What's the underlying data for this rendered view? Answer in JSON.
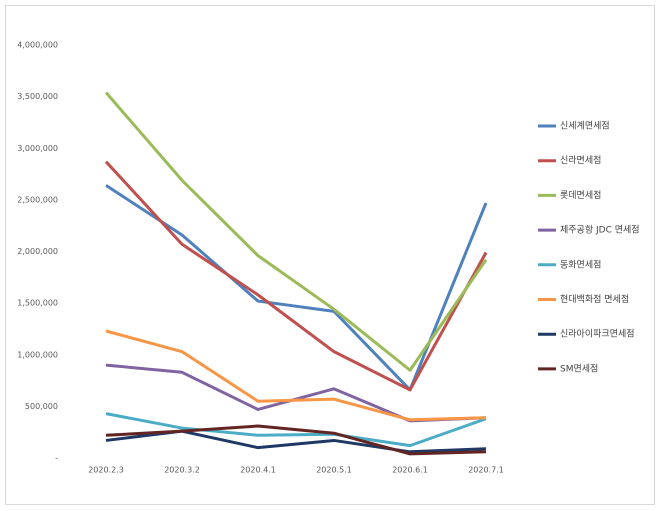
{
  "chart_data": {
    "type": "line",
    "categories": [
      "2020.2.3",
      "2020.3.2",
      "2020.4.1",
      "2020.5.1",
      "2020.6.1",
      "2020.7.1"
    ],
    "ylim": [
      0,
      4000000
    ],
    "yticks": [
      {
        "value": 0,
        "label": "-"
      },
      {
        "value": 500000,
        "label": "500,000"
      },
      {
        "value": 1000000,
        "label": "1,000,000"
      },
      {
        "value": 1500000,
        "label": "1,500,000"
      },
      {
        "value": 2000000,
        "label": "2,000,000"
      },
      {
        "value": 2500000,
        "label": "2,500,000"
      },
      {
        "value": 3000000,
        "label": "3,000,000"
      },
      {
        "value": 3500000,
        "label": "3,500,000"
      },
      {
        "value": 4000000,
        "label": "4,000,000"
      }
    ],
    "grid": false,
    "legend": "right",
    "series": [
      {
        "name": "신세계면세점",
        "color": "#4f81bd",
        "values": [
          2640000,
          2160000,
          1520000,
          1420000,
          660000,
          2470000
        ]
      },
      {
        "name": "신라면세점",
        "color": "#c0504d",
        "values": [
          2870000,
          2070000,
          1580000,
          1030000,
          660000,
          1990000
        ]
      },
      {
        "name": "롯데면세점",
        "color": "#9bbb59",
        "values": [
          3540000,
          2690000,
          1960000,
          1440000,
          850000,
          1920000
        ]
      },
      {
        "name": "제주공항 JDC 면세점",
        "color": "#8064a2",
        "values": [
          900000,
          830000,
          470000,
          670000,
          360000,
          390000
        ]
      },
      {
        "name": "동화면세점",
        "color": "#4bacc6",
        "values": [
          430000,
          290000,
          220000,
          230000,
          120000,
          380000
        ]
      },
      {
        "name": "현대백화점 면세점",
        "color": "#f79646",
        "values": [
          1230000,
          1030000,
          550000,
          570000,
          370000,
          390000
        ]
      },
      {
        "name": "신라아이파크면세점",
        "color": "#1f3864",
        "values": [
          170000,
          260000,
          100000,
          170000,
          60000,
          90000
        ]
      },
      {
        "name": "SM면세점",
        "color": "#632523",
        "values": [
          220000,
          260000,
          310000,
          240000,
          40000,
          60000
        ]
      }
    ]
  }
}
